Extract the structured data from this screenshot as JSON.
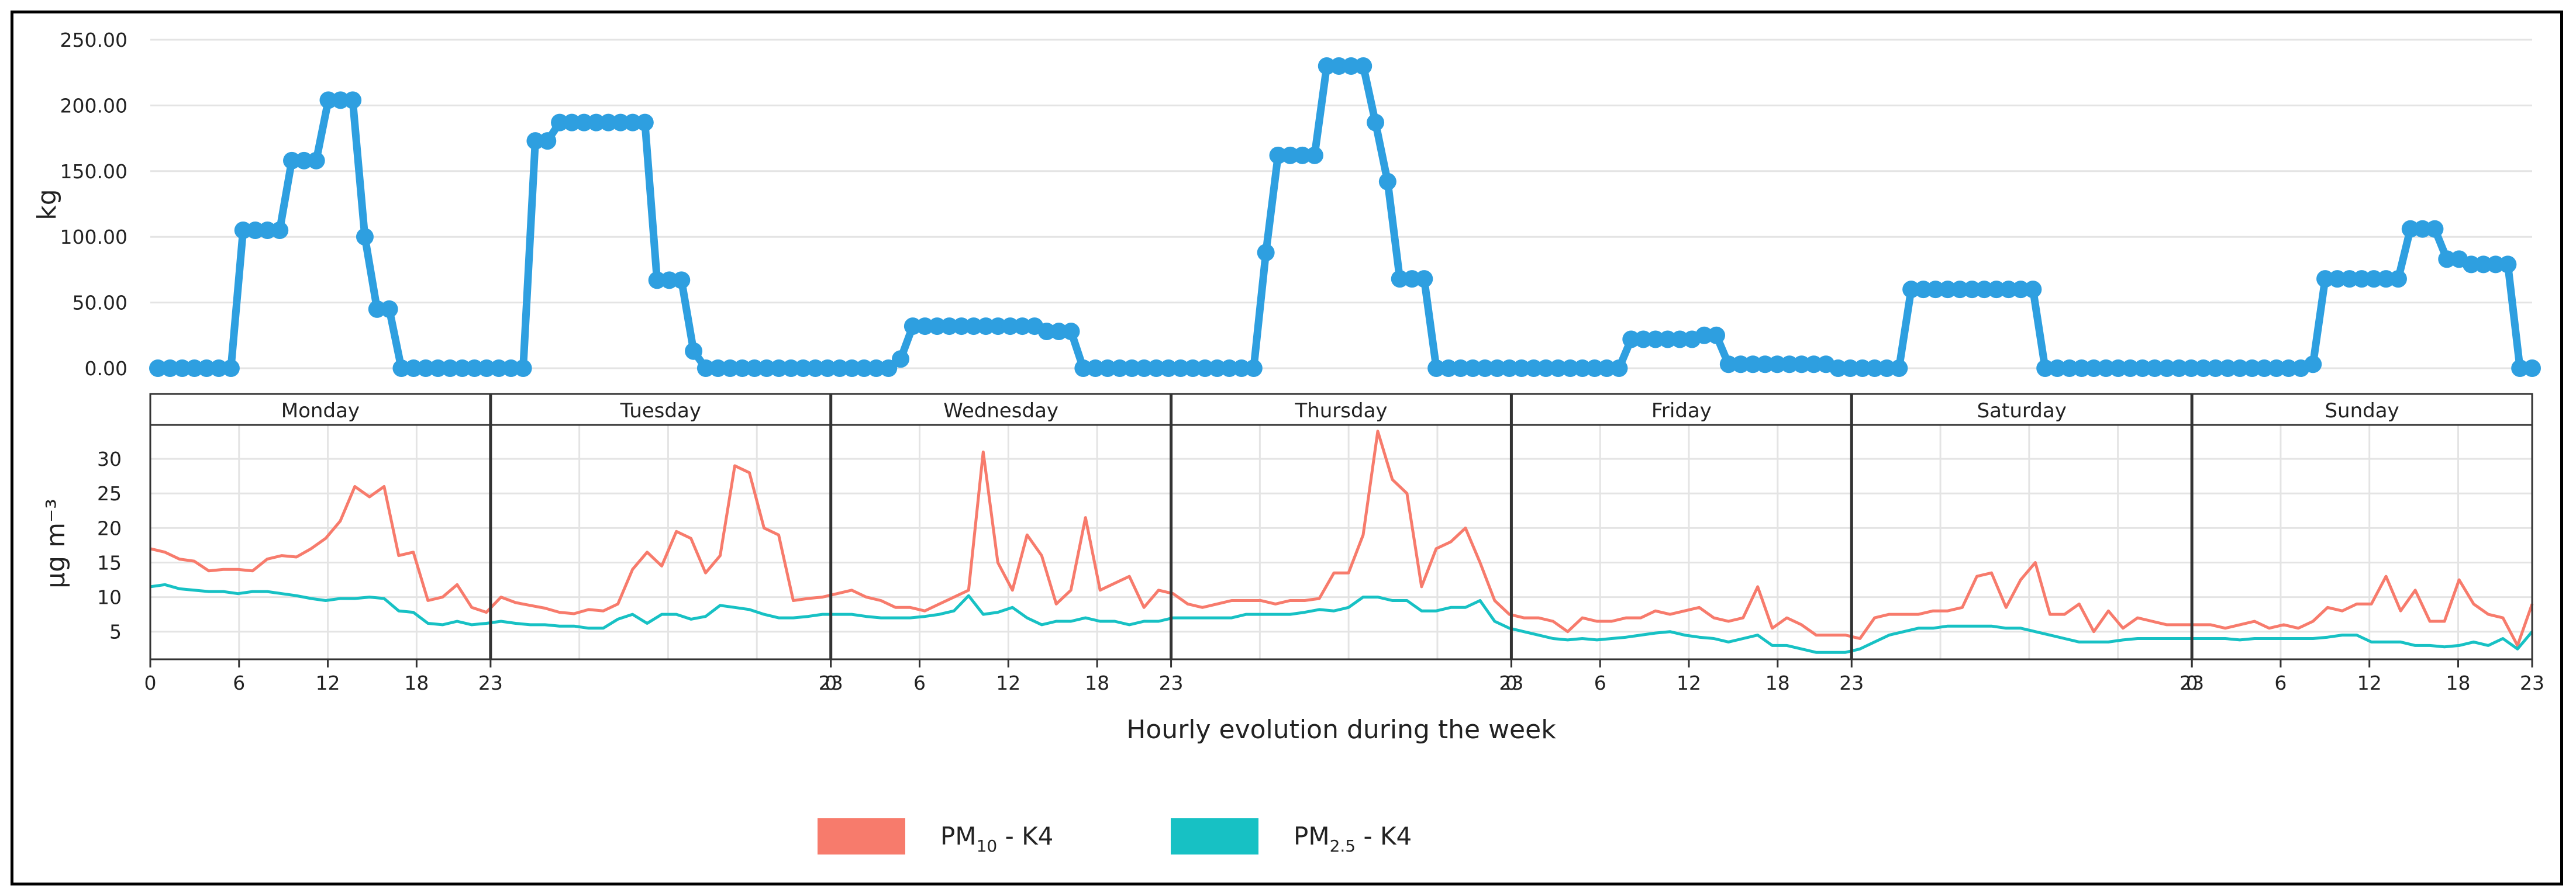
{
  "chart_data": [
    {
      "type": "line",
      "ylabel": "kg",
      "ylim": [
        0,
        250
      ],
      "yticks": [
        "0.00",
        "50.00",
        "100.00",
        "150.00",
        "200.00",
        "250.00"
      ],
      "series": [
        {
          "name": "kg",
          "color": "#2e9fe0",
          "values": [
            0,
            0,
            0,
            0,
            0,
            0,
            0,
            105,
            105,
            105,
            105,
            158,
            158,
            158,
            204,
            204,
            204,
            100,
            45,
            45,
            0,
            0,
            0,
            0,
            0,
            0,
            0,
            0,
            0,
            0,
            0,
            173,
            173,
            187,
            187,
            187,
            187,
            187,
            187,
            187,
            187,
            67,
            67,
            67,
            13,
            0,
            0,
            0,
            0,
            0,
            0,
            0,
            0,
            0,
            0,
            0,
            0,
            0,
            0,
            0,
            0,
            7,
            32,
            32,
            32,
            32,
            32,
            32,
            32,
            32,
            32,
            32,
            32,
            28,
            28,
            28,
            0,
            0,
            0,
            0,
            0,
            0,
            0,
            0,
            0,
            0,
            0,
            0,
            0,
            0,
            0,
            88,
            162,
            162,
            162,
            162,
            230,
            230,
            230,
            230,
            187,
            142,
            68,
            68,
            68,
            0,
            0,
            0,
            0,
            0,
            0,
            0,
            0,
            0,
            0,
            0,
            0,
            0,
            0,
            0,
            0,
            22,
            22,
            22,
            22,
            22,
            22,
            25,
            25,
            3,
            3,
            3,
            3,
            3,
            3,
            3,
            3,
            3,
            0,
            0,
            0,
            0,
            0,
            0,
            60,
            60,
            60,
            60,
            60,
            60,
            60,
            60,
            60,
            60,
            60,
            0,
            0,
            0,
            0,
            0,
            0,
            0,
            0,
            0,
            0,
            0,
            0,
            0,
            0,
            0,
            0,
            0,
            0,
            0,
            0,
            0,
            0,
            3,
            68,
            68,
            68,
            68,
            68,
            68,
            68,
            106,
            106,
            106,
            83,
            83,
            79,
            79,
            79,
            79,
            0,
            0
          ]
        }
      ]
    },
    {
      "type": "line",
      "ylabel": "µg m⁻³",
      "xlabel": "Hourly evolution during the week",
      "yticks": [
        "5",
        "10",
        "15",
        "20",
        "25",
        "30"
      ],
      "ylim": [
        1,
        35
      ],
      "days": [
        "Monday",
        "Tuesday",
        "Wednesday",
        "Thursday",
        "Friday",
        "Saturday",
        "Sunday"
      ],
      "xtick_labels": [
        "0",
        "6",
        "12",
        "18",
        "23",
        "23",
        "0",
        "6",
        "12",
        "18",
        "23",
        "23",
        "0",
        "6",
        "12",
        "18",
        "23",
        "23",
        "0",
        "6",
        "12",
        "18",
        "23"
      ],
      "legend": [
        {
          "main": "PM",
          "sub": "10",
          "suffix": " - K4"
        },
        {
          "main": "PM",
          "sub": "2.5",
          "suffix": " - K4"
        }
      ],
      "series": [
        {
          "name": "PM10 - K4",
          "color": "#f77b6c",
          "values": [
            17,
            16.5,
            15.5,
            15.2,
            13.8,
            14,
            14,
            13.8,
            15.5,
            16,
            15.8,
            17,
            18.5,
            21,
            26,
            24.5,
            26,
            16,
            16.5,
            9.5,
            10,
            11.8,
            8.5,
            7.8,
            10,
            9.2,
            8.8,
            8.4,
            7.8,
            7.6,
            8.2,
            8,
            9,
            14,
            16.5,
            14.5,
            19.5,
            18.5,
            13.5,
            16,
            29,
            28,
            20,
            19,
            9.5,
            9.8,
            10,
            10.5,
            11,
            10,
            9.5,
            8.5,
            8.5,
            8,
            9,
            10,
            11,
            31,
            15,
            11,
            19,
            16,
            9,
            11,
            21.5,
            11,
            12,
            13,
            8.5,
            11,
            10.5,
            9,
            8.5,
            9,
            9.5,
            9.5,
            9.5,
            9,
            9.5,
            9.5,
            9.8,
            13.5,
            13.5,
            19,
            34,
            27,
            25,
            11.5,
            17,
            18,
            20,
            15,
            9.5,
            7.5,
            7,
            7,
            6.5,
            5,
            7,
            6.5,
            6.5,
            7,
            7,
            8,
            7.5,
            8,
            8.5,
            7,
            6.5,
            7,
            11.5,
            5.5,
            7,
            6,
            4.5,
            4.5,
            4.5,
            4,
            7,
            7.5,
            7.5,
            7.5,
            8,
            8,
            8.5,
            13,
            13.5,
            8.5,
            12.5,
            15,
            7.5,
            7.5,
            9,
            5,
            8,
            5.5,
            7,
            6.5,
            6,
            6,
            6,
            6,
            5.5,
            6,
            6.5,
            5.5,
            6,
            5.5,
            6.5,
            8.5,
            8,
            9,
            9,
            13,
            8,
            11,
            6.5,
            6.5,
            12.5,
            9,
            7.5,
            7,
            3,
            9
          ]
        },
        {
          "name": "PM2.5 - K4",
          "color": "#17c1c4",
          "values": [
            11.5,
            11.8,
            11.2,
            11,
            10.8,
            10.8,
            10.5,
            10.8,
            10.8,
            10.5,
            10.2,
            9.8,
            9.5,
            9.8,
            9.8,
            10,
            9.8,
            8,
            7.8,
            6.2,
            6,
            6.5,
            6,
            6.2,
            6.5,
            6.2,
            6,
            6,
            5.8,
            5.8,
            5.5,
            5.5,
            6.8,
            7.5,
            6.2,
            7.5,
            7.5,
            6.8,
            7.2,
            8.8,
            8.5,
            8.2,
            7.5,
            7,
            7,
            7.2,
            7.5,
            7.5,
            7.5,
            7.2,
            7,
            7,
            7,
            7.2,
            7.5,
            8,
            10.2,
            7.5,
            7.8,
            8.5,
            7,
            6,
            6.5,
            6.5,
            7,
            6.5,
            6.5,
            6,
            6.5,
            6.5,
            7,
            7,
            7,
            7,
            7,
            7.5,
            7.5,
            7.5,
            7.5,
            7.8,
            8.2,
            8,
            8.5,
            10,
            10,
            9.5,
            9.5,
            8,
            8,
            8.5,
            8.5,
            9.5,
            6.5,
            5.5,
            5,
            4.5,
            4,
            3.8,
            4,
            3.8,
            4,
            4.2,
            4.5,
            4.8,
            5,
            4.5,
            4.2,
            4,
            3.5,
            4,
            4.5,
            3,
            3,
            2.5,
            2,
            2,
            2,
            2.5,
            3.5,
            4.5,
            5,
            5.5,
            5.5,
            5.8,
            5.8,
            5.8,
            5.8,
            5.5,
            5.5,
            5,
            4.5,
            4,
            3.5,
            3.5,
            3.5,
            3.8,
            4,
            4,
            4,
            4,
            4,
            4,
            4,
            3.8,
            4,
            4,
            4,
            4,
            4,
            4.2,
            4.5,
            4.5,
            3.5,
            3.5,
            3.5,
            3,
            3,
            2.8,
            3,
            3.5,
            3,
            4,
            2.5,
            5
          ]
        }
      ]
    }
  ]
}
